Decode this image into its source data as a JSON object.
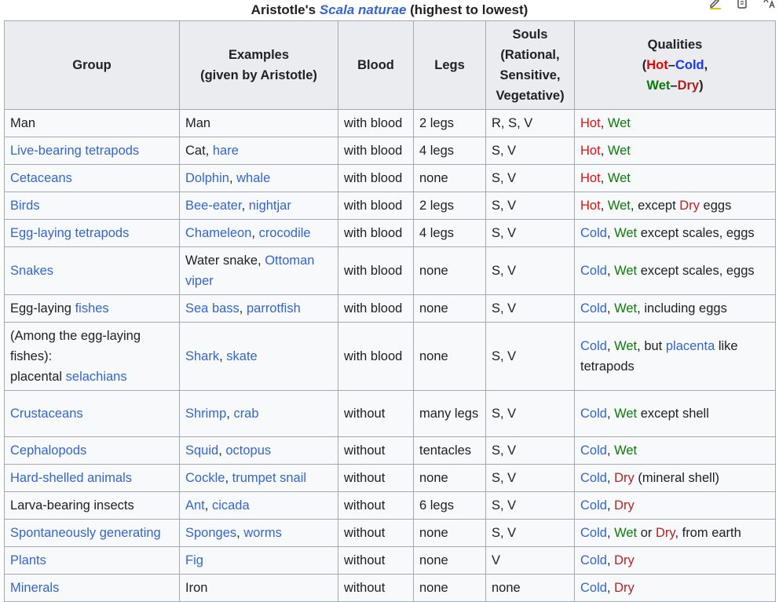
{
  "caption": {
    "prefix": "Aristotle's ",
    "link": "Scala naturae",
    "suffix": " (highest to lowest)"
  },
  "headers": {
    "group": "Group",
    "examples_l1": "Examples",
    "examples_l2": "(given by Aristotle)",
    "blood": "Blood",
    "legs": "Legs",
    "souls_l1": "Souls",
    "souls_l2": "(Rational,",
    "souls_l3": "Sensitive,",
    "souls_l4": "Vegetative)",
    "qualities_l1": "Qualities",
    "q_open": "(",
    "q_hot": "Hot",
    "q_dash": "–",
    "q_cold": "Cold",
    "q_comma": ",",
    "q_wet": "Wet",
    "q_dry": "Dry",
    "q_close": ")"
  },
  "rows": [
    {
      "group": [
        {
          "t": "Man"
        }
      ],
      "examples": [
        {
          "t": "Man"
        }
      ],
      "blood": "with blood",
      "legs": "2 legs",
      "souls": "R, S, V",
      "qualities": [
        {
          "t": "Hot",
          "c": "hot"
        },
        {
          "t": ", "
        },
        {
          "t": "Wet",
          "c": "wet"
        }
      ]
    },
    {
      "group": [
        {
          "t": "Live-bearing tetrapods",
          "link": true
        }
      ],
      "examples": [
        {
          "t": "Cat, "
        },
        {
          "t": "hare",
          "link": true
        }
      ],
      "blood": "with blood",
      "legs": "4 legs",
      "souls": "S, V",
      "qualities": [
        {
          "t": "Hot",
          "c": "hot"
        },
        {
          "t": ", "
        },
        {
          "t": "Wet",
          "c": "wet"
        }
      ]
    },
    {
      "group": [
        {
          "t": "Cetaceans",
          "link": true
        }
      ],
      "examples": [
        {
          "t": "Dolphin",
          "link": true
        },
        {
          "t": ", "
        },
        {
          "t": "whale",
          "link": true
        }
      ],
      "blood": "with blood",
      "legs": "none",
      "souls": "S, V",
      "qualities": [
        {
          "t": "Hot",
          "c": "hot"
        },
        {
          "t": ", "
        },
        {
          "t": "Wet",
          "c": "wet"
        }
      ]
    },
    {
      "group": [
        {
          "t": "Birds",
          "link": true
        }
      ],
      "examples": [
        {
          "t": "Bee-eater",
          "link": true
        },
        {
          "t": ", "
        },
        {
          "t": "nightjar",
          "link": true
        }
      ],
      "blood": "with blood",
      "legs": "2 legs",
      "souls": "S, V",
      "qualities": [
        {
          "t": "Hot",
          "c": "hot"
        },
        {
          "t": ", "
        },
        {
          "t": "Wet",
          "c": "wet"
        },
        {
          "t": ", except "
        },
        {
          "t": "Dry",
          "c": "dry"
        },
        {
          "t": " eggs"
        }
      ]
    },
    {
      "group": [
        {
          "t": "Egg-laying tetrapods",
          "link": true
        }
      ],
      "examples": [
        {
          "t": "Chameleon",
          "link": true
        },
        {
          "t": ", "
        },
        {
          "t": "crocodile",
          "link": true
        }
      ],
      "blood": "with blood",
      "legs": "4 legs",
      "souls": "S, V",
      "qualities": [
        {
          "t": "Cold",
          "c": "cold"
        },
        {
          "t": ", "
        },
        {
          "t": "Wet",
          "c": "wet"
        },
        {
          "t": " except scales, eggs"
        }
      ]
    },
    {
      "group": [
        {
          "t": "Snakes",
          "link": true
        }
      ],
      "examples": [
        {
          "t": "Water snake, "
        },
        {
          "t": "Ottoman viper",
          "link": true
        }
      ],
      "blood": "with blood",
      "legs": "none",
      "souls": "S, V",
      "qualities": [
        {
          "t": "Cold",
          "c": "cold"
        },
        {
          "t": ", "
        },
        {
          "t": "Wet",
          "c": "wet"
        },
        {
          "t": " except scales, eggs"
        }
      ]
    },
    {
      "group": [
        {
          "t": "Egg-laying "
        },
        {
          "t": "fishes",
          "link": true
        }
      ],
      "examples": [
        {
          "t": "Sea bass",
          "link": true
        },
        {
          "t": ", "
        },
        {
          "t": "parrotfish",
          "link": true
        }
      ],
      "blood": "with blood",
      "legs": "none",
      "souls": "S, V",
      "qualities": [
        {
          "t": "Cold",
          "c": "cold"
        },
        {
          "t": ", "
        },
        {
          "t": "Wet",
          "c": "wet"
        },
        {
          "t": ", including eggs"
        }
      ]
    },
    {
      "group": [
        {
          "t": "(Among the egg-laying fishes):"
        },
        {
          "br": true
        },
        {
          "t": "placental "
        },
        {
          "t": "selachians",
          "link": true
        }
      ],
      "examples": [
        {
          "t": "Shark",
          "link": true
        },
        {
          "t": ", "
        },
        {
          "t": "skate",
          "link": true
        }
      ],
      "blood": "with blood",
      "legs": "none",
      "souls": "S, V",
      "qualities": [
        {
          "t": "Cold",
          "c": "cold"
        },
        {
          "t": ", "
        },
        {
          "t": "Wet",
          "c": "wet"
        },
        {
          "t": ", but "
        },
        {
          "t": "placenta",
          "link": true
        },
        {
          "t": " like tetrapods"
        }
      ]
    },
    {
      "group": [
        {
          "t": "Crustaceans",
          "link": true
        }
      ],
      "examples": [
        {
          "t": "Shrimp",
          "link": true
        },
        {
          "t": ", "
        },
        {
          "t": "crab",
          "link": true
        }
      ],
      "blood": "without",
      "legs": "many legs",
      "souls": "S, V",
      "qualities": [
        {
          "t": "Cold",
          "c": "cold"
        },
        {
          "t": ", "
        },
        {
          "t": "Wet",
          "c": "wet"
        },
        {
          "t": " except shell"
        }
      ]
    },
    {
      "group": [
        {
          "t": "Cephalopods",
          "link": true
        }
      ],
      "examples": [
        {
          "t": "Squid",
          "link": true
        },
        {
          "t": ", "
        },
        {
          "t": "octopus",
          "link": true
        }
      ],
      "blood": "without",
      "legs": "tentacles",
      "souls": "S, V",
      "qualities": [
        {
          "t": "Cold",
          "c": "cold"
        },
        {
          "t": ", "
        },
        {
          "t": "Wet",
          "c": "wet"
        }
      ]
    },
    {
      "group": [
        {
          "t": "Hard-shelled animals",
          "link": true
        }
      ],
      "examples": [
        {
          "t": "Cockle",
          "link": true
        },
        {
          "t": ", "
        },
        {
          "t": "trumpet snail",
          "link": true
        }
      ],
      "blood": "without",
      "legs": "none",
      "souls": "S, V",
      "qualities": [
        {
          "t": "Cold",
          "c": "cold"
        },
        {
          "t": ", "
        },
        {
          "t": "Dry",
          "c": "dry"
        },
        {
          "t": " (mineral shell)"
        }
      ]
    },
    {
      "group": [
        {
          "t": "Larva-bearing insects"
        }
      ],
      "examples": [
        {
          "t": "Ant",
          "link": true
        },
        {
          "t": ", "
        },
        {
          "t": "cicada",
          "link": true
        }
      ],
      "blood": "without",
      "legs": "6 legs",
      "souls": "S, V",
      "qualities": [
        {
          "t": "Cold",
          "c": "cold"
        },
        {
          "t": ", "
        },
        {
          "t": "Dry",
          "c": "dry"
        }
      ]
    },
    {
      "group": [
        {
          "t": "Spontaneously generating",
          "link": true
        }
      ],
      "examples": [
        {
          "t": "Sponges",
          "link": true
        },
        {
          "t": ", "
        },
        {
          "t": "worms",
          "link": true
        }
      ],
      "blood": "without",
      "legs": "none",
      "souls": "S, V",
      "qualities": [
        {
          "t": "Cold",
          "c": "cold"
        },
        {
          "t": ", "
        },
        {
          "t": "Wet",
          "c": "wet"
        },
        {
          "t": " or "
        },
        {
          "t": "Dry",
          "c": "dry"
        },
        {
          "t": ", from earth"
        }
      ]
    },
    {
      "group": [
        {
          "t": "Plants",
          "link": true
        }
      ],
      "examples": [
        {
          "t": "Fig",
          "link": true
        }
      ],
      "blood": "without",
      "legs": "none",
      "souls": "V",
      "qualities": [
        {
          "t": "Cold",
          "c": "cold"
        },
        {
          "t": ", "
        },
        {
          "t": "Dry",
          "c": "dry"
        }
      ]
    },
    {
      "group": [
        {
          "t": "Minerals",
          "link": true
        }
      ],
      "examples": [
        {
          "t": "Iron"
        }
      ],
      "blood": "without",
      "legs": "none",
      "souls": "none",
      "qualities": [
        {
          "t": "Cold",
          "c": "cold"
        },
        {
          "t": ", "
        },
        {
          "t": "Dry",
          "c": "dry"
        }
      ]
    }
  ],
  "colors": {
    "link": "#3366cc",
    "hot": "#dd1111",
    "cold": "#3366cc",
    "wet": "#0a7a0a",
    "dry": "#b82222",
    "header_bg": "#eaecf0",
    "cell_bg": "#f8f9fa",
    "border": "#a2a9b1"
  },
  "toolbar_icons": [
    "pencil-icon",
    "clipboard-icon",
    "translate-icon"
  ]
}
